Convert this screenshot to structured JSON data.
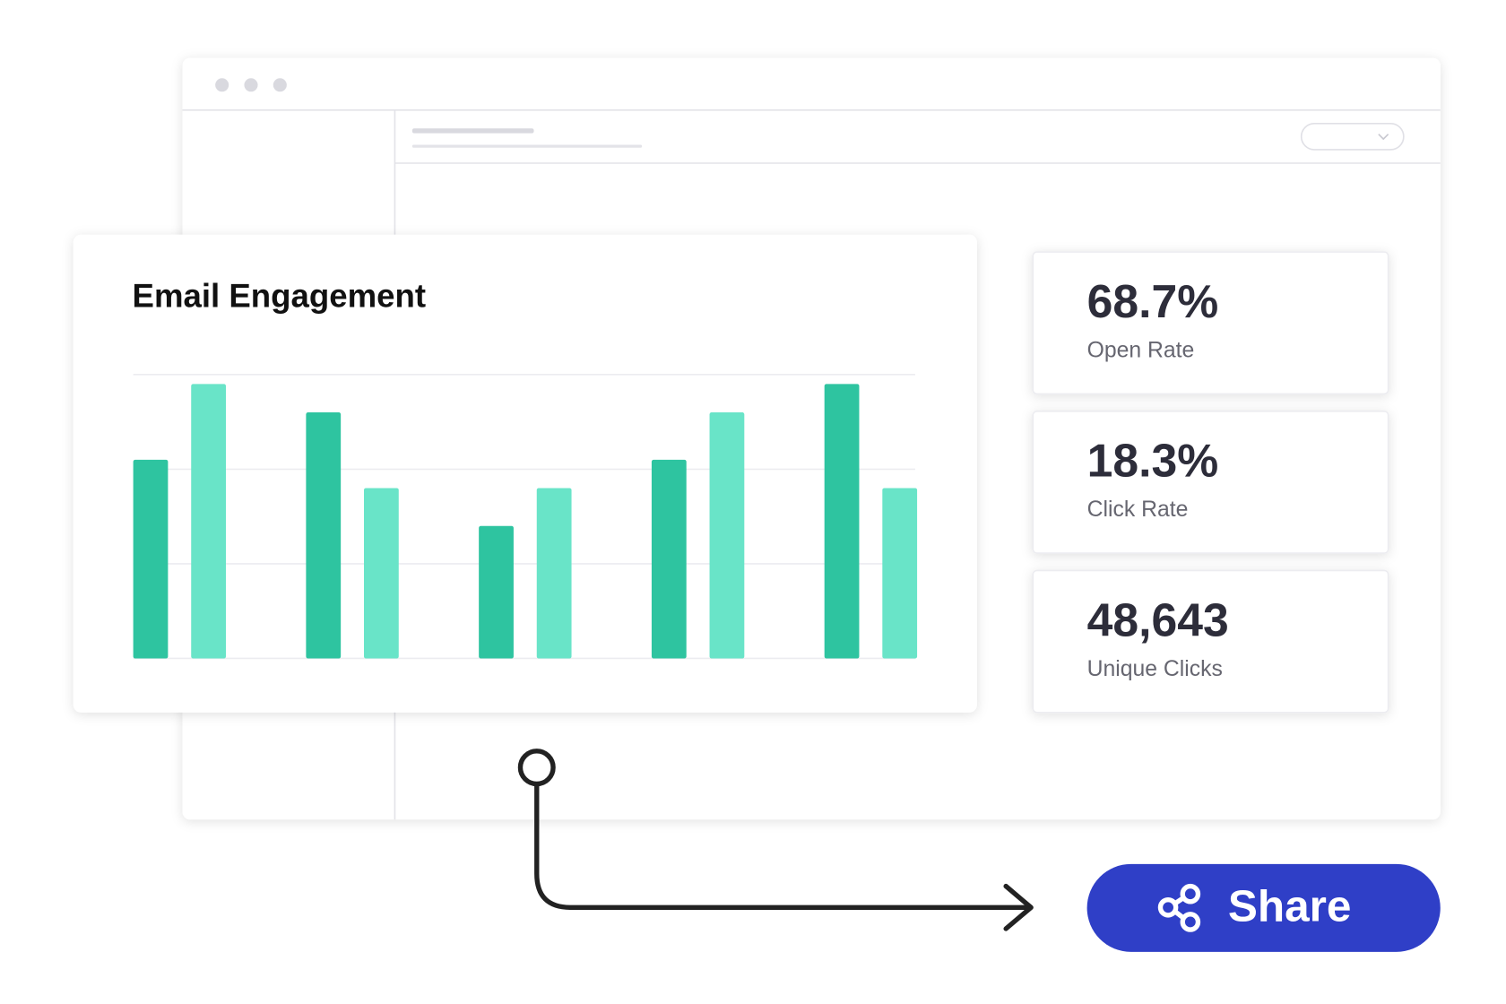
{
  "chart_data": {
    "type": "bar",
    "title": "Email Engagement",
    "categories": [
      null,
      null,
      null,
      null,
      null
    ],
    "series": [
      {
        "color": "#2ec4a0",
        "values": [
          2.1,
          2.6,
          1.4,
          2.1,
          2.9
        ]
      },
      {
        "color": "#69e4c8",
        "values": [
          2.9,
          1.8,
          1.8,
          2.6,
          1.8
        ]
      }
    ],
    "ylim": [
      0,
      3
    ],
    "yticks": [
      0,
      1,
      2,
      3
    ],
    "grid": true
  },
  "stats": [
    {
      "value": "68.7%",
      "label": "Open Rate"
    },
    {
      "value": "18.3%",
      "label": "Click Rate"
    },
    {
      "value": "48,643",
      "label": "Unique Clicks"
    }
  ],
  "share_button": {
    "label": "Share"
  }
}
